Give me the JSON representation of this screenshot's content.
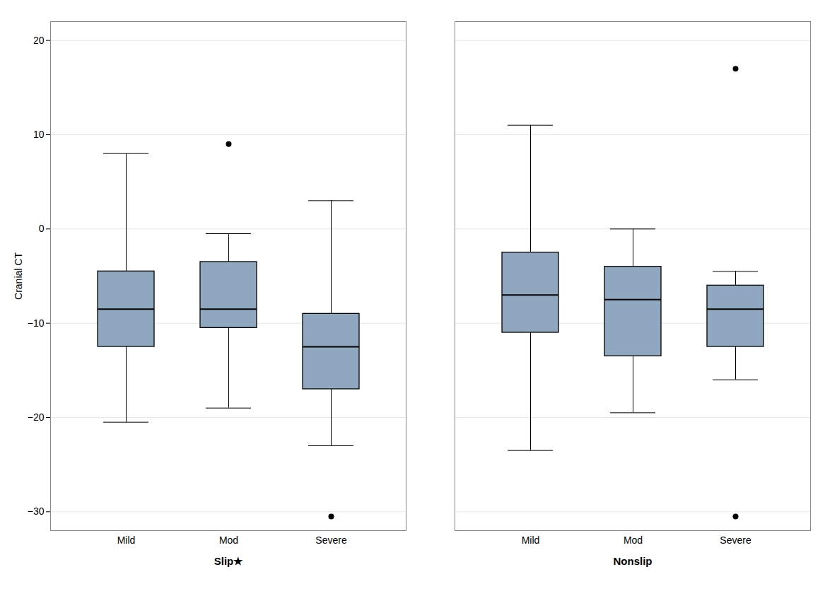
{
  "chart_data": {
    "type": "box",
    "ylabel": "Cranial CT",
    "categories": [
      "Mild",
      "Mod",
      "Severe"
    ],
    "groups": [
      {
        "name": "Slip★",
        "boxes": [
          {
            "q1": -12.5,
            "median": -8.5,
            "q3": -4.5,
            "whisker_low": -20.5,
            "whisker_high": 8.0,
            "fliers_low": [],
            "fliers_high": []
          },
          {
            "q1": -10.5,
            "median": -8.5,
            "q3": -3.5,
            "whisker_low": -19.0,
            "whisker_high": -0.5,
            "fliers_low": [],
            "fliers_high": [
              9.0
            ]
          },
          {
            "q1": -17.0,
            "median": -12.5,
            "q3": -9.0,
            "whisker_low": -23.0,
            "whisker_high": 3.0,
            "fliers_low": [
              -30.5
            ],
            "fliers_high": []
          }
        ]
      },
      {
        "name": "Nonslip",
        "boxes": [
          {
            "q1": -11.0,
            "median": -7.0,
            "q3": -2.5,
            "whisker_low": -23.5,
            "whisker_high": 11.0,
            "fliers_low": [],
            "fliers_high": []
          },
          {
            "q1": -13.5,
            "median": -7.5,
            "q3": -4.0,
            "whisker_low": -19.5,
            "whisker_high": 0.0,
            "fliers_low": [],
            "fliers_high": []
          },
          {
            "q1": -12.5,
            "median": -8.5,
            "q3": -6.0,
            "whisker_low": -16.0,
            "whisker_high": -4.5,
            "fliers_low": [
              -30.5
            ],
            "fliers_high": [
              17.0
            ]
          }
        ]
      }
    ],
    "color": "#8fa8c0",
    "ylim": [
      -32,
      22
    ],
    "yticks": [
      -30,
      -20,
      -10,
      0,
      10,
      20
    ],
    "grid": true
  }
}
